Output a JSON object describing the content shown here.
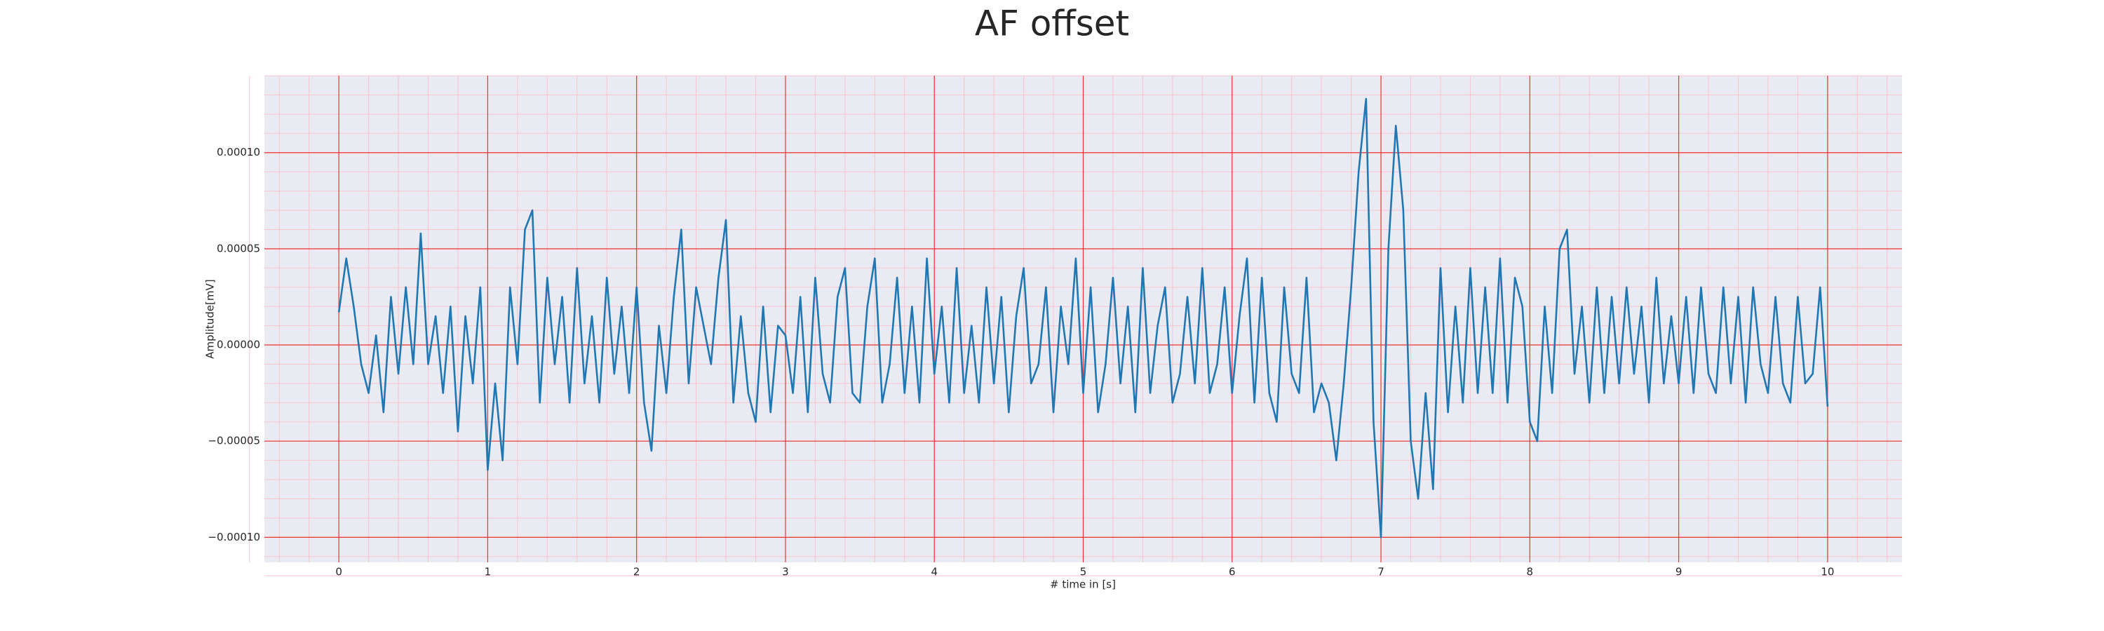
{
  "chart_data": {
    "type": "line",
    "title": "AF offset",
    "xlabel": "# time in [s]",
    "ylabel": "Amplitude[mV]",
    "xlim": [
      -0.5,
      10.5
    ],
    "ylim": [
      -0.000113,
      0.00014
    ],
    "xticks": [
      0,
      1,
      2,
      3,
      4,
      5,
      6,
      7,
      8,
      9,
      10
    ],
    "yticks": [
      {
        "value": -0.0001,
        "label": "−0.00010"
      },
      {
        "value": -5e-05,
        "label": "−0.00005"
      },
      {
        "value": 0,
        "label": "0.00000"
      },
      {
        "value": 5e-05,
        "label": "0.00005"
      },
      {
        "value": 0.0001,
        "label": "0.00010"
      }
    ],
    "grid": true,
    "minor_grid": true,
    "x": [
      0,
      0.05,
      0.1,
      0.15,
      0.2,
      0.25,
      0.3,
      0.35,
      0.4,
      0.45,
      0.5,
      0.55,
      0.6,
      0.65,
      0.7,
      0.75,
      0.8,
      0.85,
      0.9,
      0.95,
      1,
      1.05,
      1.1,
      1.15,
      1.2,
      1.25,
      1.3,
      1.35,
      1.4,
      1.45,
      1.5,
      1.55,
      1.6,
      1.65,
      1.7,
      1.75,
      1.8,
      1.85,
      1.9,
      1.95,
      2,
      2.05,
      2.1,
      2.15,
      2.2,
      2.25,
      2.3,
      2.35,
      2.4,
      2.45,
      2.5,
      2.55,
      2.6,
      2.65,
      2.7,
      2.75,
      2.8,
      2.85,
      2.9,
      2.95,
      3,
      3.05,
      3.1,
      3.15,
      3.2,
      3.25,
      3.3,
      3.35,
      3.4,
      3.45,
      3.5,
      3.55,
      3.6,
      3.65,
      3.7,
      3.75,
      3.8,
      3.85,
      3.9,
      3.95,
      4,
      4.05,
      4.1,
      4.15,
      4.2,
      4.25,
      4.3,
      4.35,
      4.4,
      4.45,
      4.5,
      4.55,
      4.6,
      4.65,
      4.7,
      4.75,
      4.8,
      4.85,
      4.9,
      4.95,
      5,
      5.05,
      5.1,
      5.15,
      5.2,
      5.25,
      5.3,
      5.35,
      5.4,
      5.45,
      5.5,
      5.55,
      5.6,
      5.65,
      5.7,
      5.75,
      5.8,
      5.85,
      5.9,
      5.95,
      6,
      6.05,
      6.1,
      6.15,
      6.2,
      6.25,
      6.3,
      6.35,
      6.4,
      6.45,
      6.5,
      6.55,
      6.6,
      6.65,
      6.7,
      6.75,
      6.8,
      6.85,
      6.9,
      6.95,
      7,
      7.05,
      7.1,
      7.15,
      7.2,
      7.25,
      7.3,
      7.35,
      7.4,
      7.45,
      7.5,
      7.55,
      7.6,
      7.65,
      7.7,
      7.75,
      7.8,
      7.85,
      7.9,
      7.95,
      8,
      8.05,
      8.1,
      8.15,
      8.2,
      8.25,
      8.3,
      8.35,
      8.4,
      8.45,
      8.5,
      8.55,
      8.6,
      8.65,
      8.7,
      8.75,
      8.8,
      8.85,
      8.9,
      8.95,
      9,
      9.05,
      9.1,
      9.15,
      9.2,
      9.25,
      9.3,
      9.35,
      9.4,
      9.45,
      9.5,
      9.55,
      9.6,
      9.65,
      9.7,
      9.75,
      9.8,
      9.85,
      9.9,
      9.95,
      10
    ],
    "series": [
      {
        "name": "AF offset",
        "color": "#1f77b4",
        "values": [
          1.7e-05,
          4.5e-05,
          2e-05,
          -1e-05,
          -2.5e-05,
          5e-06,
          -3.5e-05,
          2.5e-05,
          -1.5e-05,
          3e-05,
          -1e-05,
          5.8e-05,
          -1e-05,
          1.5e-05,
          -2.5e-05,
          2e-05,
          -4.5e-05,
          1.5e-05,
          -2e-05,
          3e-05,
          -6.5e-05,
          -2e-05,
          -6e-05,
          3e-05,
          -1e-05,
          6e-05,
          7e-05,
          -3e-05,
          3.5e-05,
          -1e-05,
          2.5e-05,
          -3e-05,
          4e-05,
          -2e-05,
          1.5e-05,
          -3e-05,
          3.5e-05,
          -1.5e-05,
          2e-05,
          -2.5e-05,
          3e-05,
          -3e-05,
          -5.5e-05,
          1e-05,
          -2.5e-05,
          2.5e-05,
          6e-05,
          -2e-05,
          3e-05,
          1e-05,
          -1e-05,
          3.5e-05,
          6.5e-05,
          -3e-05,
          1.5e-05,
          -2.5e-05,
          -4e-05,
          2e-05,
          -3.5e-05,
          1e-05,
          5e-06,
          -2.5e-05,
          2.5e-05,
          -3.5e-05,
          3.5e-05,
          -1.5e-05,
          -3e-05,
          2.5e-05,
          4e-05,
          -2.5e-05,
          -3e-05,
          2e-05,
          4.5e-05,
          -3e-05,
          -1e-05,
          3.5e-05,
          -2.5e-05,
          2e-05,
          -3e-05,
          4.5e-05,
          -1.5e-05,
          2e-05,
          -3e-05,
          4e-05,
          -2.5e-05,
          1e-05,
          -3e-05,
          3e-05,
          -2e-05,
          2.5e-05,
          -3.5e-05,
          1.5e-05,
          4e-05,
          -2e-05,
          -1e-05,
          3e-05,
          -3.5e-05,
          2e-05,
          -1e-05,
          4.5e-05,
          -2.5e-05,
          3e-05,
          -3.5e-05,
          -1e-05,
          3.5e-05,
          -2e-05,
          2e-05,
          -3.5e-05,
          4e-05,
          -2.5e-05,
          1e-05,
          3e-05,
          -3e-05,
          -1.5e-05,
          2.5e-05,
          -2e-05,
          4e-05,
          -2.5e-05,
          -1e-05,
          3e-05,
          -2.5e-05,
          1.5e-05,
          4.5e-05,
          -3e-05,
          3.5e-05,
          -2.5e-05,
          -4e-05,
          3e-05,
          -1.5e-05,
          -2.5e-05,
          3.5e-05,
          -3.5e-05,
          -2e-05,
          -3e-05,
          -6e-05,
          -2e-05,
          3e-05,
          9e-05,
          0.000128,
          -4e-05,
          -0.0001,
          5e-05,
          0.000114,
          7e-05,
          -5e-05,
          -8e-05,
          -2.5e-05,
          -7.5e-05,
          4e-05,
          -3.5e-05,
          2e-05,
          -3e-05,
          4e-05,
          -2.5e-05,
          3e-05,
          -2.5e-05,
          4.5e-05,
          -3e-05,
          3.5e-05,
          2e-05,
          -4e-05,
          -5e-05,
          2e-05,
          -2.5e-05,
          5e-05,
          6e-05,
          -1.5e-05,
          2e-05,
          -3e-05,
          3e-05,
          -2.5e-05,
          2.5e-05,
          -2e-05,
          3e-05,
          -1.5e-05,
          2e-05,
          -3e-05,
          3.5e-05,
          -2e-05,
          1.5e-05,
          -2e-05,
          2.5e-05,
          -2.5e-05,
          3e-05,
          -1.5e-05,
          -2.5e-05,
          3e-05,
          -2e-05,
          2.5e-05,
          -3e-05,
          3e-05,
          -1e-05,
          -2.5e-05,
          2.5e-05,
          -2e-05,
          -3e-05,
          2.5e-05,
          -2e-05,
          -1.5e-05,
          3e-05,
          -3.2e-05
        ]
      }
    ]
  }
}
